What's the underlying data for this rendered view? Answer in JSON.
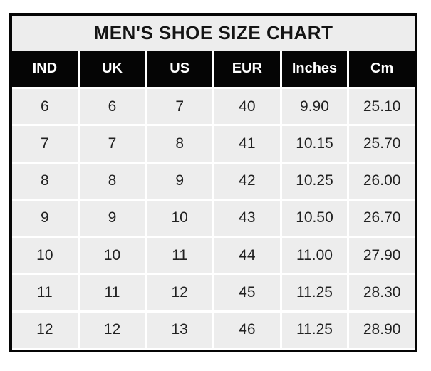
{
  "title": "MEN'S SHOE SIZE CHART",
  "chart_data": {
    "type": "table",
    "title": "MEN'S SHOE SIZE CHART",
    "columns": [
      "IND",
      "UK",
      "US",
      "EUR",
      "Inches",
      "Cm"
    ],
    "rows": [
      [
        "6",
        "6",
        "7",
        "40",
        "9.90",
        "25.10"
      ],
      [
        "7",
        "7",
        "8",
        "41",
        "10.15",
        "25.70"
      ],
      [
        "8",
        "8",
        "9",
        "42",
        "10.25",
        "26.00"
      ],
      [
        "9",
        "9",
        "10",
        "43",
        "10.50",
        "26.70"
      ],
      [
        "10",
        "10",
        "11",
        "44",
        "11.00",
        "27.90"
      ],
      [
        "11",
        "11",
        "12",
        "45",
        "11.25",
        "28.30"
      ],
      [
        "12",
        "12",
        "13",
        "46",
        "11.25",
        "28.90"
      ]
    ],
    "layout": {
      "legend": "none",
      "grid": "white gridlines between gray cells",
      "header_style": "black background, white bold text"
    }
  },
  "colors": {
    "border": "#050505",
    "header_bg": "#050505",
    "header_text": "#ffffff",
    "cell_bg": "#ededed",
    "gridline": "#ffffff",
    "cell_text": "#212121",
    "title_text": "#141414",
    "page_bg": "#ffffff"
  }
}
